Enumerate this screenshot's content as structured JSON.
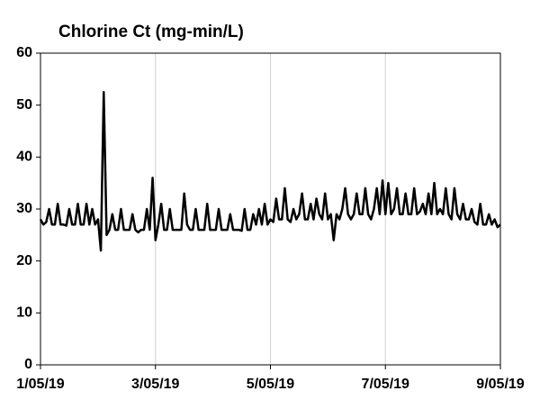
{
  "chart_data": {
    "type": "line",
    "title": "Chlorine Ct (mg-min/L)",
    "color": "#000000",
    "xlim": [
      1,
      9
    ],
    "xticks": [
      {
        "value": 1,
        "label": "1/05/19"
      },
      {
        "value": 3,
        "label": "3/05/19"
      },
      {
        "value": 5,
        "label": "5/05/19"
      },
      {
        "value": 7,
        "label": "7/05/19"
      },
      {
        "value": 9,
        "label": "9/05/19"
      }
    ],
    "ylim": [
      0,
      60
    ],
    "yticks": [
      0,
      10,
      20,
      30,
      40,
      50,
      60
    ],
    "grid": "x",
    "x": [
      1,
      1.05,
      1.1,
      1.15,
      1.2,
      1.25,
      1.3,
      1.35,
      1.4,
      1.45,
      1.5,
      1.55,
      1.6,
      1.65,
      1.7,
      1.75,
      1.8,
      1.85,
      1.9,
      1.95,
      2,
      2.05,
      2.1,
      2.15,
      2.2,
      2.25,
      2.3,
      2.35,
      2.4,
      2.45,
      2.5,
      2.55,
      2.6,
      2.65,
      2.7,
      2.75,
      2.8,
      2.85,
      2.9,
      2.95,
      3,
      3.05,
      3.1,
      3.15,
      3.2,
      3.25,
      3.3,
      3.35,
      3.4,
      3.45,
      3.5,
      3.55,
      3.6,
      3.65,
      3.7,
      3.75,
      3.8,
      3.85,
      3.9,
      3.95,
      4,
      4.05,
      4.1,
      4.15,
      4.2,
      4.25,
      4.3,
      4.35,
      4.4,
      4.45,
      4.5,
      4.55,
      4.6,
      4.65,
      4.7,
      4.75,
      4.8,
      4.85,
      4.9,
      4.95,
      5,
      5.05,
      5.1,
      5.15,
      5.2,
      5.25,
      5.3,
      5.35,
      5.4,
      5.45,
      5.5,
      5.55,
      5.6,
      5.65,
      5.7,
      5.75,
      5.8,
      5.85,
      5.9,
      5.95,
      6,
      6.05,
      6.1,
      6.15,
      6.2,
      6.25,
      6.3,
      6.35,
      6.4,
      6.45,
      6.5,
      6.55,
      6.6,
      6.65,
      6.7,
      6.75,
      6.8,
      6.85,
      6.9,
      6.95,
      7,
      7.05,
      7.1,
      7.15,
      7.2,
      7.25,
      7.3,
      7.35,
      7.4,
      7.45,
      7.5,
      7.55,
      7.6,
      7.65,
      7.7,
      7.75,
      7.8,
      7.85,
      7.9,
      7.95,
      8,
      8.05,
      8.1,
      8.15,
      8.2,
      8.25,
      8.3,
      8.35,
      8.4,
      8.45,
      8.5,
      8.55,
      8.6,
      8.65,
      8.7,
      8.75,
      8.8,
      8.85,
      8.9,
      8.95,
      9
    ],
    "values": [
      28,
      27,
      27.5,
      30,
      27,
      27,
      31,
      27,
      27,
      26.8,
      30,
      27,
      27,
      31,
      27,
      27,
      31,
      27,
      30,
      27,
      28,
      22,
      52.5,
      25,
      26,
      29,
      26,
      26,
      30,
      26,
      26,
      26,
      29,
      26,
      25.5,
      26,
      26,
      30,
      26,
      36,
      24,
      27,
      31,
      26,
      26,
      30,
      26,
      26,
      26,
      26,
      33,
      27,
      26,
      26,
      30,
      26,
      26,
      26,
      31,
      26,
      26,
      26,
      30,
      26,
      26,
      26,
      29,
      26,
      26,
      26,
      25.8,
      30,
      26,
      26,
      29,
      27,
      30,
      27,
      31,
      27,
      28,
      27.5,
      32,
      28,
      28,
      34,
      28,
      27.5,
      30,
      28,
      29,
      33,
      28,
      28,
      31,
      28,
      32,
      29,
      28,
      33,
      28,
      29,
      24,
      29,
      28,
      30,
      34,
      29,
      28,
      29,
      33,
      29,
      29,
      34,
      29,
      28,
      30,
      34,
      29,
      35.5,
      29,
      35,
      29,
      30,
      34,
      29,
      29,
      33,
      29,
      29,
      34,
      29,
      29.5,
      31,
      29,
      33,
      29,
      35,
      29,
      30,
      29,
      34,
      29,
      28,
      34,
      29,
      28,
      31,
      28,
      28,
      30,
      27.5,
      27,
      31,
      27,
      27,
      29,
      27,
      28,
      26.5,
      27
    ]
  }
}
